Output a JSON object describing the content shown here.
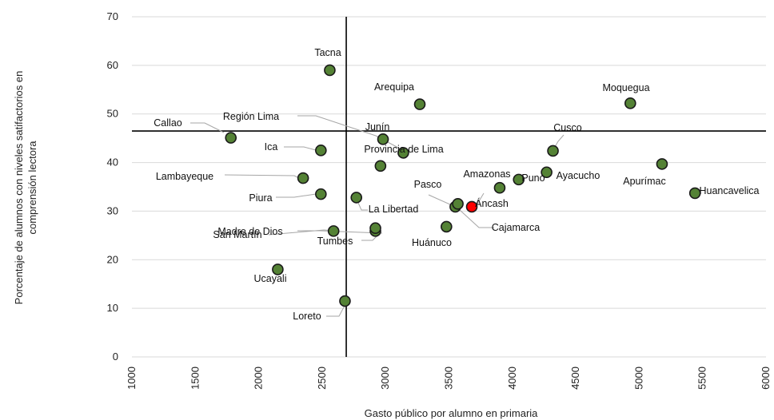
{
  "chart_data": {
    "type": "scatter",
    "xlabel": "Gasto público por alumno en primaria",
    "ylabel": "Porcentaje de alumnos con niveles satifactorios en comprensión lectora",
    "xlim": [
      1000,
      6000
    ],
    "ylim": [
      0,
      70
    ],
    "xticks": [
      1000,
      1500,
      2000,
      2500,
      3000,
      3500,
      4000,
      4500,
      5000,
      5500,
      6000
    ],
    "yticks": [
      0,
      10,
      20,
      30,
      40,
      50,
      60,
      70
    ],
    "grid": "horizontal",
    "crosshair": {
      "x": 2690,
      "y": 46.5
    },
    "colors": {
      "point": "#548235",
      "highlight": "#ff0000",
      "edge": "#1a1a1a"
    },
    "points": [
      {
        "label": "Tacna",
        "x": 2560,
        "y": 59
      },
      {
        "label": "Arequipa",
        "x": 3270,
        "y": 52
      },
      {
        "label": "Moquegua",
        "x": 4930,
        "y": 52.2
      },
      {
        "label": "Callao",
        "x": 1780,
        "y": 45.1
      },
      {
        "label": "Región Lima",
        "x": 3140,
        "y": 42.0
      },
      {
        "label": "Junín",
        "x": 2980,
        "y": 44.8
      },
      {
        "label": "Ica",
        "x": 2490,
        "y": 42.5
      },
      {
        "label": "Provincia de Lima",
        "x": 2960,
        "y": 39.3
      },
      {
        "label": "Cusco",
        "x": 4320,
        "y": 42.4
      },
      {
        "label": "Lambayeque",
        "x": 2350,
        "y": 36.8
      },
      {
        "label": "Amazonas",
        "x": 3900,
        "y": 34.8
      },
      {
        "label": "Puno",
        "x": 4050,
        "y": 36.5
      },
      {
        "label": "Ayacucho",
        "x": 4270,
        "y": 38.0
      },
      {
        "label": "Apurímac",
        "x": 5180,
        "y": 39.7
      },
      {
        "label": "Huancavelica",
        "x": 5440,
        "y": 33.7
      },
      {
        "label": "Piura",
        "x": 2490,
        "y": 33.5
      },
      {
        "label": "La Libertad",
        "x": 2770,
        "y": 32.8
      },
      {
        "label": "Pasco",
        "x": 3550,
        "y": 30.9
      },
      {
        "label": "Cajamarca",
        "x": 3570,
        "y": 31.5
      },
      {
        "label": "Áncash",
        "x": 3680,
        "y": 30.9,
        "highlight": true
      },
      {
        "label": "Huánuco",
        "x": 3480,
        "y": 26.8
      },
      {
        "label": "Madre de Dios",
        "x": 2590,
        "y": 25.9
      },
      {
        "label": "San Martín",
        "x": 2920,
        "y": 25.9
      },
      {
        "label": "Tumbes",
        "x": 2920,
        "y": 26.5
      },
      {
        "label": "Ucayali",
        "x": 2150,
        "y": 18.0
      },
      {
        "label": "Loreto",
        "x": 2680,
        "y": 11.5
      }
    ]
  }
}
